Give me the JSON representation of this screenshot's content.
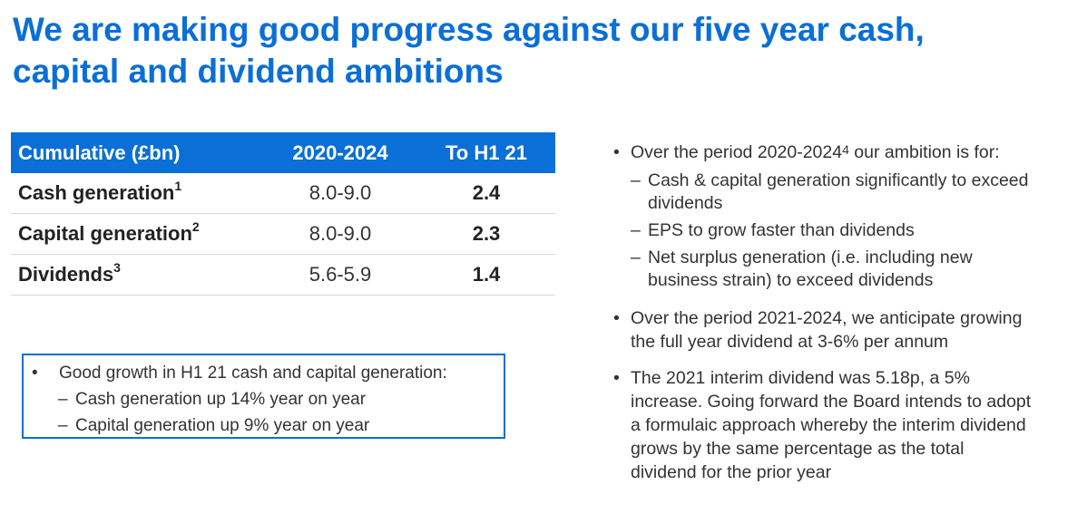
{
  "title": {
    "line1": "We are making good progress against our five year cash,",
    "line2": "capital and dividend ambitions"
  },
  "table": {
    "headers": [
      "Cumulative (£bn)",
      "2020-2024",
      "To H1 21"
    ],
    "rows": [
      {
        "label": "Cash generation",
        "footnote": "1",
        "range": "8.0-9.0",
        "h1": "2.4"
      },
      {
        "label": "Capital generation",
        "footnote": "2",
        "range": "8.0-9.0",
        "h1": "2.3"
      },
      {
        "label": "Dividends",
        "footnote": "3",
        "range": "5.6-5.9",
        "h1": "1.4"
      }
    ]
  },
  "growth_box": {
    "bullet": "Good growth in H1 21 cash and capital generation:",
    "subs": [
      "Cash generation up 14% year on year",
      "Capital generation up 9% year on year"
    ]
  },
  "ambitions": {
    "b1_pre": "Over the period 2020-2024",
    "b1_sup": "4",
    "b1_post": " our ambition is for:",
    "sub1_l1": "Cash & capital generation significantly to exceed",
    "sub1_l2": "dividends",
    "sub2": "EPS to grow faster than dividends",
    "sub3_l1": "Net surplus generation (i.e. including new",
    "sub3_l2": "business strain) to exceed dividends",
    "b2_l1": "Over the period 2021-2024, we anticipate growing",
    "b2_l2": "the full year dividend at 3-6% per annum",
    "b3_l1": "The 2021 interim dividend was 5.18p, a 5%",
    "b3_l2": "increase. Going forward the Board intends to adopt",
    "b3_l3": "a formulaic approach whereby the interim dividend",
    "b3_l4": "grows by the same percentage as the total",
    "b3_l5": "dividend for the prior year"
  }
}
